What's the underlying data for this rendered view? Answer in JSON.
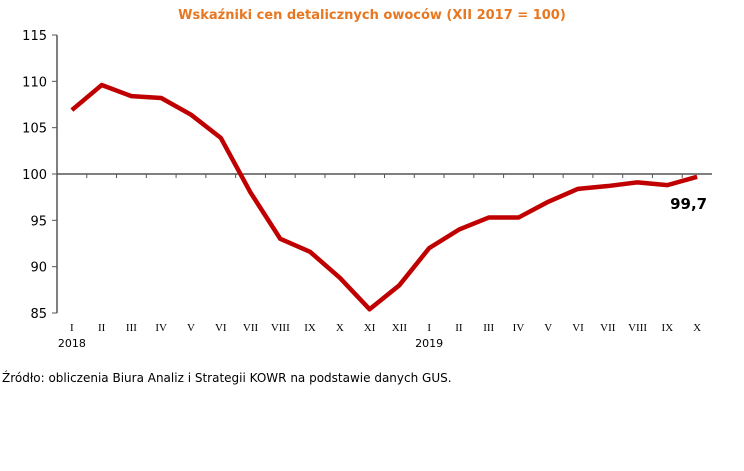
{
  "chart_data": {
    "type": "line",
    "title": "Wskaźniki cen detalicznych owoców (XII 2017 = 100)",
    "categories": [
      "I",
      "II",
      "III",
      "IV",
      "V",
      "VI",
      "VII",
      "VIII",
      "IX",
      "X",
      "XI",
      "XII",
      "I",
      "II",
      "III",
      "IV",
      "V",
      "VI",
      "VII",
      "VIII",
      "IX",
      "X"
    ],
    "year_labels": [
      {
        "index": 0,
        "label": "2018"
      },
      {
        "index": 12,
        "label": "2019"
      }
    ],
    "series": [
      {
        "values": [
          106.9,
          109.6,
          108.4,
          108.2,
          106.4,
          103.9,
          98.0,
          93.0,
          91.6,
          88.8,
          85.4,
          88.0,
          92.0,
          94.0,
          95.3,
          95.3,
          97.0,
          98.4,
          98.7,
          99.1,
          98.8,
          99.7
        ],
        "color": "#c00000"
      }
    ],
    "ylim": [
      85,
      115
    ],
    "yticks": [
      85,
      90,
      95,
      100,
      105,
      110,
      115
    ],
    "x_axis_crosses_at": 100,
    "grid": false,
    "annotation": "99,7",
    "xlabel": "",
    "ylabel": ""
  },
  "source": "Źródło: obliczenia Biura Analiz i Strategii KOWR na podstawie danych GUS."
}
